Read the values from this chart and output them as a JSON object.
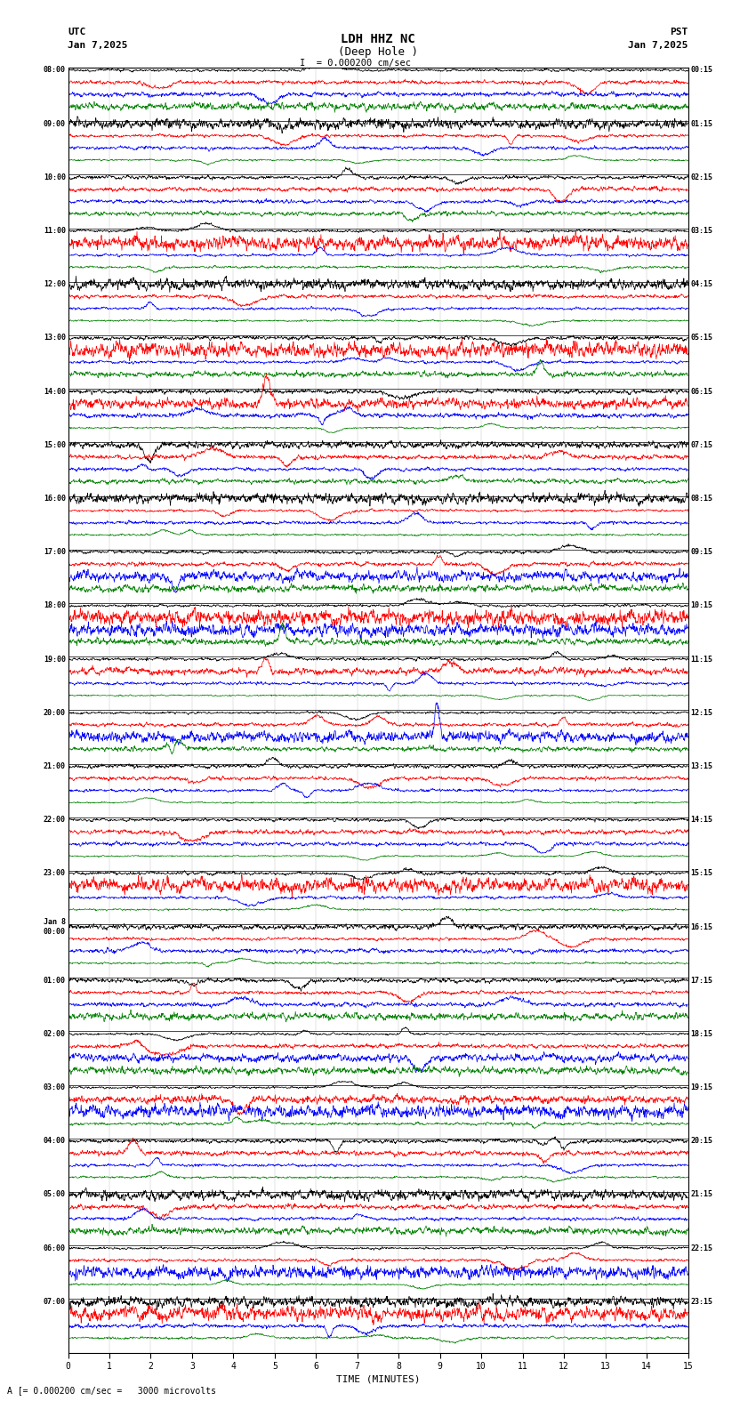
{
  "title_line1": "LDH HHZ NC",
  "title_line2": "(Deep Hole )",
  "scale_label": "= 0.000200 cm/sec",
  "bottom_label": "A [= 0.000200 cm/sec =   3000 microvolts",
  "utc_label": "UTC",
  "pst_label": "PST",
  "date_left": "Jan 7,2025",
  "date_right": "Jan 7,2025",
  "xlabel": "TIME (MINUTES)",
  "ylabel_left_times": [
    "08:00",
    "09:00",
    "10:00",
    "11:00",
    "12:00",
    "13:00",
    "14:00",
    "15:00",
    "16:00",
    "17:00",
    "18:00",
    "19:00",
    "20:00",
    "21:00",
    "22:00",
    "23:00",
    "Jan 8\n00:00",
    "01:00",
    "02:00",
    "03:00",
    "04:00",
    "05:00",
    "06:00",
    "07:00"
  ],
  "ylabel_right_times": [
    "00:15",
    "01:15",
    "02:15",
    "03:15",
    "04:15",
    "05:15",
    "06:15",
    "07:15",
    "08:15",
    "09:15",
    "10:15",
    "11:15",
    "12:15",
    "13:15",
    "14:15",
    "15:15",
    "16:15",
    "17:15",
    "18:15",
    "19:15",
    "20:15",
    "21:15",
    "22:15",
    "23:15"
  ],
  "num_rows": 24,
  "traces_per_row": 4,
  "trace_colors": [
    "black",
    "red",
    "blue",
    "green"
  ],
  "bg_color": "white",
  "minutes_per_trace": 15,
  "samples_per_trace": 1800,
  "noise_amplitudes": [
    1.0,
    1.4,
    1.2,
    0.7
  ],
  "fig_width": 8.5,
  "fig_height": 15.84
}
